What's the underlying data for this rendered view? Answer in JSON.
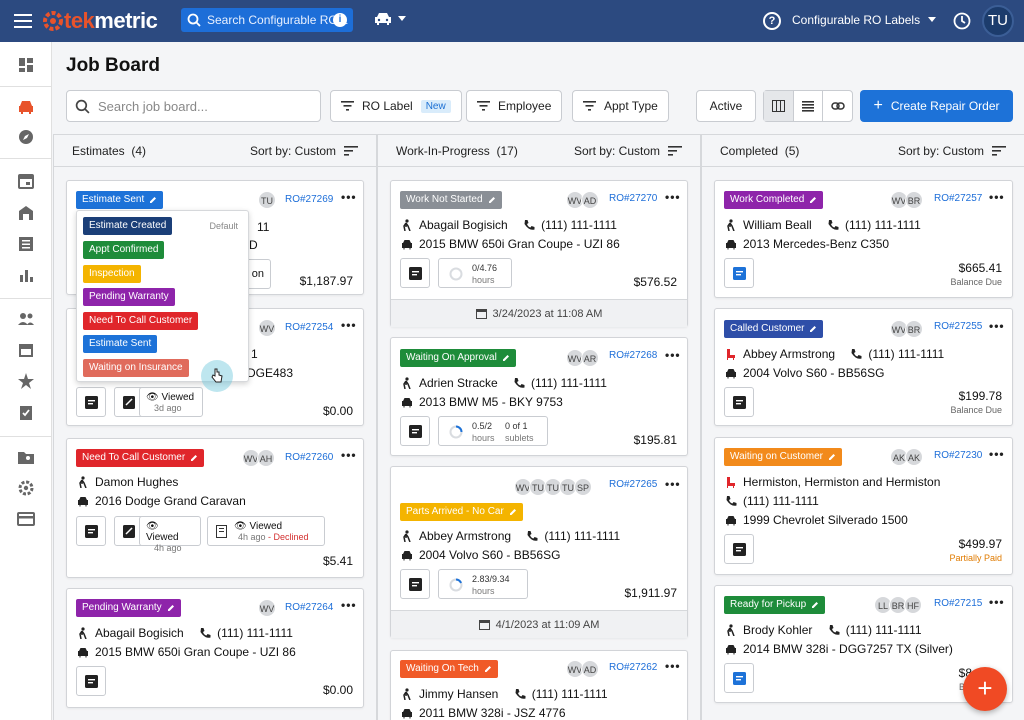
{
  "app": {
    "logo_part1": "tek",
    "logo_part2": "metric",
    "search_placeholder": "Search Configurable RO L",
    "labels_menu": "Configurable RO Labels",
    "user_initials": "TU"
  },
  "page": {
    "title": "Job Board",
    "search_placeholder": "Search job board...",
    "ro_label": "RO Label",
    "new_badge": "New",
    "employee": "Employee",
    "appt_type": "Appt Type",
    "active": "Active",
    "create": "Create Repair Order"
  },
  "colors": {
    "blue": "#1d72d8",
    "navy": "#2c4a80",
    "green": "#1e8c3a",
    "purple": "#8e24aa",
    "red": "#e0262b",
    "orange": "#f28a1b",
    "yellow": "#f4b400",
    "salmon": "#e06b5c",
    "gray": "#8a8f96",
    "darkblue": "#1b3f78",
    "coral": "#f05a28"
  },
  "columns": [
    {
      "title": "Estimates",
      "count": "(4)",
      "sort": "Sort by: Custom"
    },
    {
      "title": "Work-In-Progress",
      "count": "(17)",
      "sort": "Sort by: Custom"
    },
    {
      "title": "Completed",
      "count": "(5)",
      "sort": "Sort by: Custom"
    }
  ],
  "estimates": [
    {
      "tag": "Estimate Sent",
      "avatars": [
        "TU"
      ],
      "ro": "RO#27269",
      "amount": "$1,187.97",
      "partial1": "11",
      "partial2": "D",
      "partial3": "on"
    },
    {
      "avatars": [
        "WV"
      ],
      "ro": "RO#27254",
      "partial1": "1",
      "partial2": "DGE483",
      "viewed": "Viewed",
      "viewed_time": "3d ago",
      "amount": "$0.00"
    },
    {
      "tag": "Need To Call Customer",
      "avatars": [
        "WV",
        "AH"
      ],
      "ro": "RO#27260",
      "customer": "Damon Hughes",
      "vehicle": "2016 Dodge Grand Caravan",
      "viewed1": "Viewed",
      "viewed1_time": "4h ago",
      "viewed2": "Viewed",
      "viewed2_time": "4h ago",
      "declined": "- Declined",
      "amount": "$5.41"
    },
    {
      "tag": "Pending Warranty",
      "avatars": [
        "WV"
      ],
      "ro": "RO#27264",
      "customer": "Abagail Bogisich",
      "phone": "(111) 111-1111",
      "vehicle": "2015 BMW 650i Gran Coupe - UZI 86",
      "amount": "$0.00"
    }
  ],
  "dropdown": {
    "default": "Default",
    "options": [
      "Estimate Created",
      "Appt Confirmed",
      "Inspection",
      "Pending Warranty",
      "Need To Call Customer",
      "Estimate Sent",
      "Waiting on Insurance"
    ]
  },
  "wip": [
    {
      "tag": "Work Not Started",
      "avatars": [
        "WV",
        "AD"
      ],
      "ro": "RO#27270",
      "customer": "Abagail Bogisich",
      "phone": "(111) 111-1111",
      "vehicle": "2015 BMW 650i Gran Coupe - UZI 86",
      "hours": "0/4.76",
      "hours_label": "hours",
      "amount": "$576.52",
      "date": "3/24/2023 at 11:08 AM"
    },
    {
      "tag": "Waiting On Approval",
      "avatars": [
        "WV",
        "AR"
      ],
      "ro": "RO#27268",
      "customer": "Adrien Stracke",
      "phone": "(111) 111-1111",
      "vehicle": "2013 BMW M5 - BKY 9753",
      "hours": "0.5/2",
      "hours_label": "hours",
      "sublets": "0 of 1",
      "sublets_label": "sublets",
      "amount": "$195.81"
    },
    {
      "tag": "Parts Arrived - No Car",
      "avatars": [
        "WV",
        "TU",
        "TU",
        "TU",
        "SP"
      ],
      "ro": "RO#27265",
      "customer": "Abbey Armstrong",
      "phone": "(111) 111-1111",
      "vehicle": "2004 Volvo S60 - BB56SG",
      "hours": "2.83/9.34",
      "hours_label": "hours",
      "amount": "$1,911.97",
      "date": "4/1/2023 at 11:09 AM"
    },
    {
      "tag": "Waiting On Tech",
      "avatars": [
        "WV",
        "AD"
      ],
      "ro": "RO#27262",
      "customer": "Jimmy Hansen",
      "phone": "(111) 111-1111",
      "vehicle": "2011 BMW 328i - JSZ 4776"
    }
  ],
  "completed": [
    {
      "tag": "Work Completed",
      "avatars": [
        "WV",
        "BR"
      ],
      "ro": "RO#27257",
      "customer": "William Beall",
      "phone": "(111) 111-1111",
      "vehicle": "2013 Mercedes-Benz C350",
      "amount": "$665.41",
      "status": "Balance Due"
    },
    {
      "tag": "Called Customer",
      "avatars": [
        "WV",
        "BR"
      ],
      "ro": "RO#27255",
      "customer": "Abbey Armstrong",
      "phone": "(111) 111-1111",
      "vehicle": "2004 Volvo S60 - BB56SG",
      "amount": "$199.78",
      "status": "Balance Due"
    },
    {
      "tag": "Waiting on Customer",
      "avatars": [
        "AK",
        "AK"
      ],
      "ro": "RO#27230",
      "customer": "Hermiston, Hermiston and Hermiston",
      "phone": "(111) 111-1111",
      "vehicle": "1999 Chevrolet Silverado 1500",
      "amount": "$499.97",
      "status": "Partially Paid"
    },
    {
      "tag": "Ready for Pickup",
      "avatars": [
        "LL",
        "BR",
        "HF"
      ],
      "ro": "RO#27215",
      "customer": "Brody Kohler",
      "phone": "(111) 111-1111",
      "vehicle": "2014 BMW 328i - DGG7257 TX (Silver)",
      "amount": "$8",
      "status": "Bal"
    }
  ],
  "fab": "+"
}
